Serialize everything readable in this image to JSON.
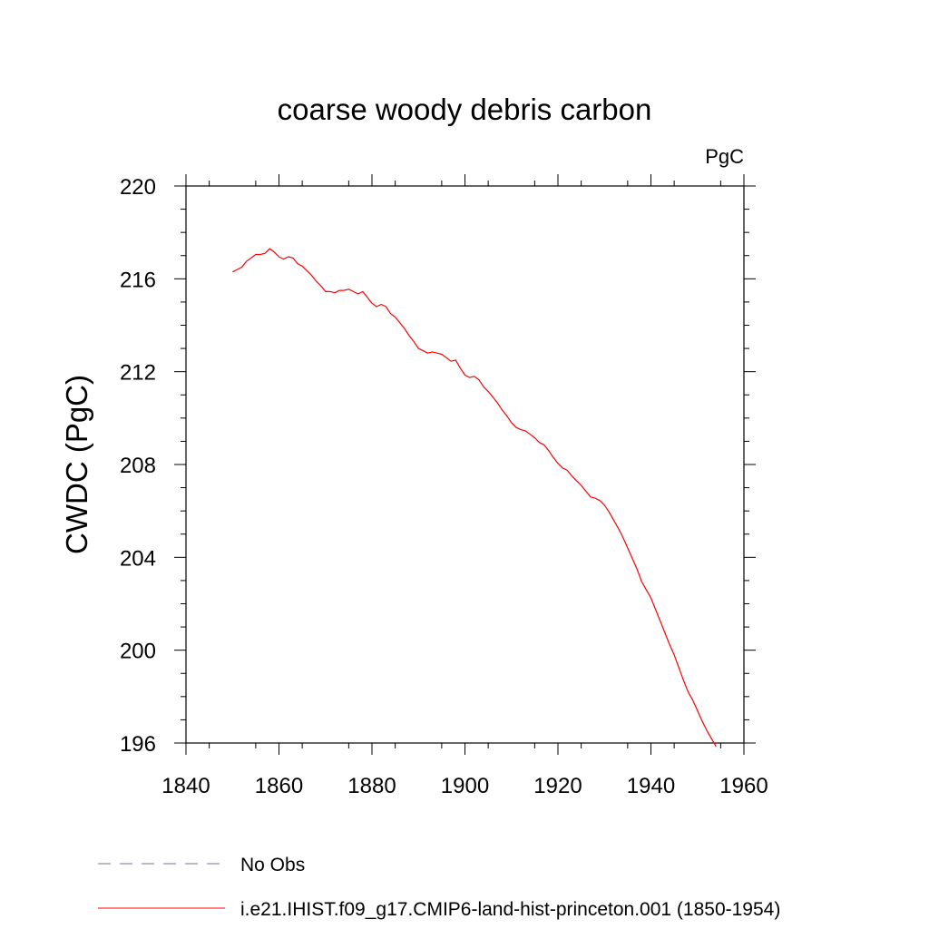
{
  "chart_data": {
    "type": "line",
    "title": "coarse woody debris carbon",
    "units": "PgC",
    "ylabel": "CWDC  (PgC)",
    "xlabel": "",
    "xlim": [
      1840,
      1960
    ],
    "ylim": [
      196,
      220
    ],
    "xticks": [
      "1840",
      "1860",
      "1880",
      "1900",
      "1920",
      "1940",
      "1960"
    ],
    "yticks": [
      "196",
      "200",
      "204",
      "208",
      "212",
      "216",
      "220"
    ],
    "grid": false,
    "legend_position": "bottom",
    "legend": [
      {
        "label": "No Obs",
        "style": "dashed",
        "color": "#7a6fb0"
      },
      {
        "label": "i.e21.IHIST.f09_g17.CMIP6-land-hist-princeton.001 (1850-1954)",
        "style": "solid",
        "color": "#ff0000"
      }
    ],
    "series": [
      {
        "color": "#ff0000",
        "x": [
          1850,
          1851,
          1852,
          1853,
          1854,
          1855,
          1856,
          1857,
          1858,
          1859,
          1860,
          1861,
          1862,
          1863,
          1864,
          1865,
          1866,
          1867,
          1868,
          1869,
          1870,
          1871,
          1872,
          1873,
          1874,
          1875,
          1876,
          1877,
          1878,
          1879,
          1880,
          1881,
          1882,
          1883,
          1884,
          1885,
          1886,
          1887,
          1888,
          1889,
          1890,
          1891,
          1892,
          1893,
          1894,
          1895,
          1896,
          1897,
          1898,
          1899,
          1900,
          1901,
          1902,
          1903,
          1904,
          1905,
          1906,
          1907,
          1908,
          1909,
          1910,
          1911,
          1912,
          1913,
          1914,
          1915,
          1916,
          1917,
          1918,
          1919,
          1920,
          1921,
          1922,
          1923,
          1924,
          1925,
          1926,
          1927,
          1928,
          1929,
          1930,
          1931,
          1932,
          1933,
          1934,
          1935,
          1936,
          1937,
          1938,
          1939,
          1940,
          1941,
          1942,
          1943,
          1944,
          1945,
          1946,
          1947,
          1948,
          1949,
          1950,
          1951,
          1952,
          1953,
          1954
        ],
        "y": [
          216.3,
          216.4,
          216.5,
          216.75,
          216.9,
          217.05,
          217.05,
          217.1,
          217.3,
          217.15,
          216.95,
          216.85,
          216.95,
          216.9,
          216.65,
          216.55,
          216.35,
          216.15,
          215.9,
          215.7,
          215.45,
          215.45,
          215.4,
          215.5,
          215.5,
          215.55,
          215.45,
          215.35,
          215.45,
          215.2,
          214.95,
          214.8,
          214.9,
          214.8,
          214.5,
          214.35,
          214.1,
          213.85,
          213.55,
          213.3,
          213.0,
          212.9,
          212.8,
          212.85,
          212.8,
          212.75,
          212.6,
          212.45,
          212.5,
          212.15,
          211.85,
          211.75,
          211.8,
          211.65,
          211.35,
          211.15,
          210.9,
          210.65,
          210.35,
          210.1,
          209.8,
          209.6,
          209.5,
          209.45,
          209.3,
          209.15,
          208.95,
          208.85,
          208.6,
          208.3,
          208.05,
          207.85,
          207.75,
          207.5,
          207.3,
          207.1,
          206.85,
          206.6,
          206.55,
          206.45,
          206.25,
          205.95,
          205.6,
          205.25,
          204.85,
          204.4,
          203.95,
          203.5,
          202.95,
          202.6,
          202.25,
          201.75,
          201.25,
          200.75,
          200.25,
          199.8,
          199.25,
          198.7,
          198.2,
          197.85,
          197.4,
          196.95,
          196.55,
          196.2,
          195.85
        ]
      }
    ]
  }
}
